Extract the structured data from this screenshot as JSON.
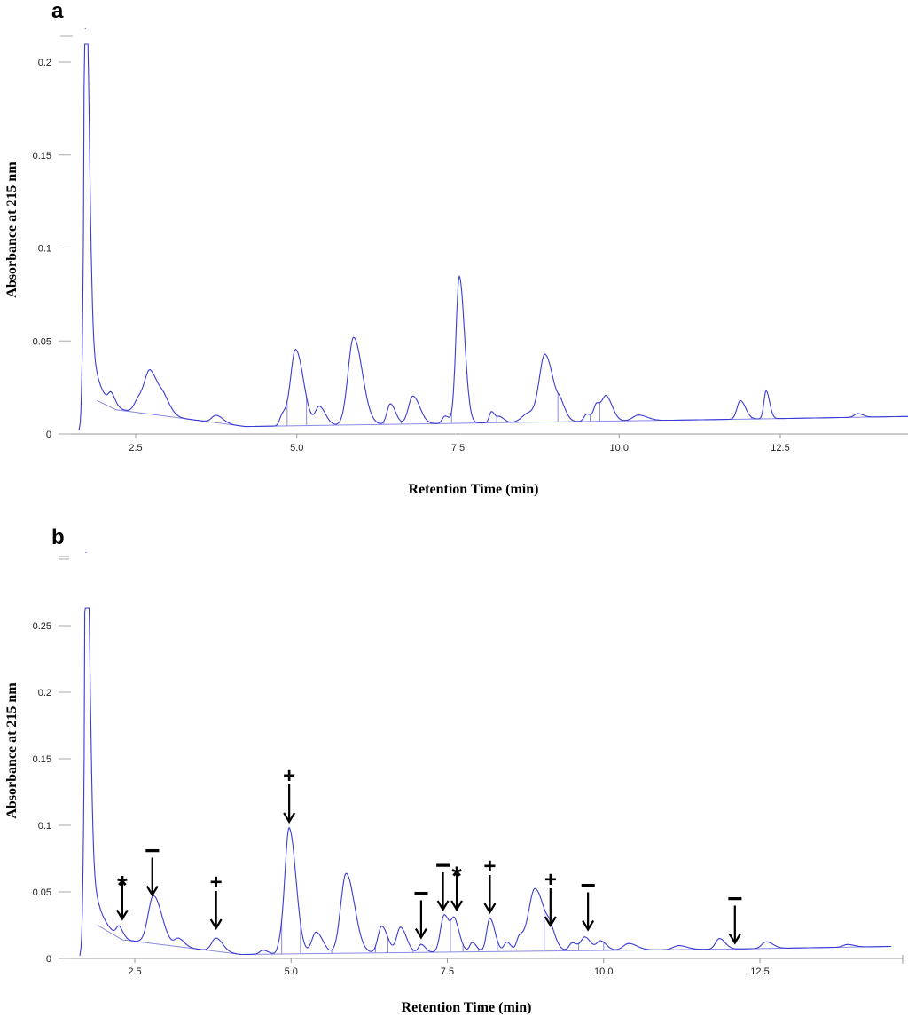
{
  "chart_data": [
    {
      "panel": "a",
      "type": "line",
      "xlabel": "Retention Time (min)",
      "ylabel": "Absorbance at 215 nm",
      "xlim": [
        1.55,
        14.6
      ],
      "ylim": [
        0,
        0.22
      ],
      "x_ticks": [
        2.5,
        5.0,
        7.5,
        10.0,
        12.5
      ],
      "x_tick_labels": [
        "2.5",
        "5.0",
        "7.5",
        "10.0",
        "12.5"
      ],
      "y_ticks": [
        0,
        0.05,
        0.1,
        0.15,
        0.2
      ],
      "y_tick_labels": [
        "0",
        "0.05",
        "0.1",
        "0.15",
        "0.2"
      ],
      "line_color": "#3b3bd6",
      "baseline_color": "#8a8ae0",
      "trace_baseline": [
        [
          1.9,
          0.018
        ],
        [
          2.2,
          0.013
        ],
        [
          4.2,
          0.004
        ],
        [
          8,
          0.006
        ],
        [
          12,
          0.008
        ],
        [
          14.6,
          0.0095
        ]
      ],
      "trace_tail": {
        "a": 0.19,
        "k": 8.5,
        "x0": 1.72
      },
      "peaks": [
        {
          "x": 1.72,
          "h": 0.2,
          "w": 0.04
        },
        {
          "x": 2.12,
          "h": 0.006,
          "w": 0.05
        },
        {
          "x": 2.55,
          "h": 0.007,
          "w": 0.08
        },
        {
          "x": 2.73,
          "h": 0.022,
          "w": 0.1
        },
        {
          "x": 2.95,
          "h": 0.006,
          "w": 0.08
        },
        {
          "x": 3.75,
          "h": 0.004,
          "w": 0.08
        },
        {
          "x": 4.78,
          "h": 0.006,
          "w": 0.05
        },
        {
          "x": 4.98,
          "h": 0.041,
          "w": 0.09
        },
        {
          "x": 5.35,
          "h": 0.01,
          "w": 0.07
        },
        {
          "x": 5.88,
          "h": 0.047,
          "w": 0.1
        },
        {
          "x": 6.45,
          "h": 0.011,
          "w": 0.06
        },
        {
          "x": 6.8,
          "h": 0.015,
          "w": 0.08
        },
        {
          "x": 7.3,
          "h": 0.004,
          "w": 0.05
        },
        {
          "x": 7.52,
          "h": 0.079,
          "w": 0.06
        },
        {
          "x": 8.02,
          "h": 0.006,
          "w": 0.04
        },
        {
          "x": 8.15,
          "h": 0.003,
          "w": 0.05
        },
        {
          "x": 8.6,
          "h": 0.005,
          "w": 0.12
        },
        {
          "x": 8.85,
          "h": 0.035,
          "w": 0.1
        },
        {
          "x": 9.1,
          "h": 0.006,
          "w": 0.06
        },
        {
          "x": 9.5,
          "h": 0.004,
          "w": 0.05
        },
        {
          "x": 9.65,
          "h": 0.009,
          "w": 0.05
        },
        {
          "x": 9.8,
          "h": 0.013,
          "w": 0.07
        },
        {
          "x": 10.3,
          "h": 0.003,
          "w": 0.1
        },
        {
          "x": 11.88,
          "h": 0.01,
          "w": 0.06
        },
        {
          "x": 12.28,
          "h": 0.015,
          "w": 0.04
        },
        {
          "x": 13.7,
          "h": 0.002,
          "w": 0.06
        }
      ],
      "segment_marks": [
        2.4,
        3.35,
        4.45,
        4.85,
        5.15,
        5.62,
        6.35,
        6.62,
        7.4,
        7.93,
        8.1,
        8.4,
        9.05,
        9.55,
        9.7,
        10.05,
        10.55,
        11.5,
        12.05,
        12.55
      ]
    },
    {
      "panel": "b",
      "type": "line",
      "xlabel": "Retention Time (min)",
      "ylabel": "Absorbance at 215 nm",
      "xlim": [
        1.55,
        14.6
      ],
      "ylim": [
        0,
        0.3
      ],
      "x_ticks": [
        2.5,
        5.0,
        7.5,
        10.0,
        12.5
      ],
      "x_tick_labels": [
        "2.5",
        "5.0",
        "7.5",
        "10.0",
        "12.5"
      ],
      "y_ticks": [
        0,
        0.05,
        0.1,
        0.15,
        0.2,
        0.25
      ],
      "y_tick_labels": [
        "0",
        "0.05",
        "0.1",
        "0.15",
        "0.2",
        "0.25"
      ],
      "line_color": "#3b3bd6",
      "baseline_color": "#8a8ae0",
      "trace_baseline": [
        [
          1.9,
          0.025
        ],
        [
          2.3,
          0.014
        ],
        [
          4.2,
          0.003
        ],
        [
          8,
          0.005
        ],
        [
          12,
          0.007
        ],
        [
          14.6,
          0.009
        ]
      ],
      "trace_tail": {
        "a": 0.27,
        "k": 8.5,
        "x0": 1.72
      },
      "peaks": [
        {
          "x": 1.72,
          "h": 0.28,
          "w": 0.04
        },
        {
          "x": 2.25,
          "h": 0.008,
          "w": 0.05
        },
        {
          "x": 2.8,
          "h": 0.036,
          "w": 0.1
        },
        {
          "x": 3.2,
          "h": 0.006,
          "w": 0.07
        },
        {
          "x": 3.8,
          "h": 0.01,
          "w": 0.08
        },
        {
          "x": 4.55,
          "h": 0.003,
          "w": 0.06
        },
        {
          "x": 4.83,
          "h": 0.006,
          "w": 0.05
        },
        {
          "x": 4.97,
          "h": 0.094,
          "w": 0.08
        },
        {
          "x": 5.4,
          "h": 0.016,
          "w": 0.08
        },
        {
          "x": 5.88,
          "h": 0.06,
          "w": 0.1
        },
        {
          "x": 6.45,
          "h": 0.02,
          "w": 0.07
        },
        {
          "x": 6.75,
          "h": 0.019,
          "w": 0.07
        },
        {
          "x": 7.08,
          "h": 0.006,
          "w": 0.05
        },
        {
          "x": 7.45,
          "h": 0.028,
          "w": 0.07
        },
        {
          "x": 7.62,
          "h": 0.02,
          "w": 0.06
        },
        {
          "x": 7.9,
          "h": 0.007,
          "w": 0.05
        },
        {
          "x": 8.18,
          "h": 0.025,
          "w": 0.06
        },
        {
          "x": 8.45,
          "h": 0.007,
          "w": 0.05
        },
        {
          "x": 8.65,
          "h": 0.01,
          "w": 0.05
        },
        {
          "x": 8.9,
          "h": 0.047,
          "w": 0.12
        },
        {
          "x": 9.15,
          "h": 0.008,
          "w": 0.06
        },
        {
          "x": 9.5,
          "h": 0.006,
          "w": 0.06
        },
        {
          "x": 9.7,
          "h": 0.01,
          "w": 0.07
        },
        {
          "x": 9.95,
          "h": 0.007,
          "w": 0.07
        },
        {
          "x": 10.4,
          "h": 0.005,
          "w": 0.1
        },
        {
          "x": 11.2,
          "h": 0.003,
          "w": 0.1
        },
        {
          "x": 11.85,
          "h": 0.008,
          "w": 0.07
        },
        {
          "x": 12.6,
          "h": 0.005,
          "w": 0.08
        },
        {
          "x": 13.9,
          "h": 0.002,
          "w": 0.08
        }
      ],
      "segment_marks": [
        2.45,
        3.5,
        4.45,
        4.85,
        5.15,
        5.65,
        6.35,
        6.55,
        6.95,
        7.55,
        7.75,
        8.0,
        8.3,
        8.55,
        9.05,
        9.6,
        10.0,
        11.0,
        11.6,
        12.3
      ],
      "annotations": [
        {
          "x": 2.3,
          "y": 0.027,
          "symbol": "*"
        },
        {
          "x": 2.78,
          "y": 0.045,
          "symbol": "−"
        },
        {
          "x": 3.8,
          "y": 0.02,
          "symbol": "+"
        },
        {
          "x": 4.97,
          "y": 0.1,
          "symbol": "+"
        },
        {
          "x": 7.08,
          "y": 0.013,
          "symbol": "−"
        },
        {
          "x": 7.43,
          "y": 0.034,
          "symbol": "−"
        },
        {
          "x": 7.65,
          "y": 0.034,
          "symbol": "*"
        },
        {
          "x": 8.18,
          "y": 0.032,
          "symbol": "+"
        },
        {
          "x": 9.15,
          "y": 0.022,
          "symbol": "+"
        },
        {
          "x": 9.75,
          "y": 0.019,
          "symbol": "−"
        },
        {
          "x": 12.1,
          "y": 0.009,
          "symbol": "−"
        }
      ]
    }
  ]
}
